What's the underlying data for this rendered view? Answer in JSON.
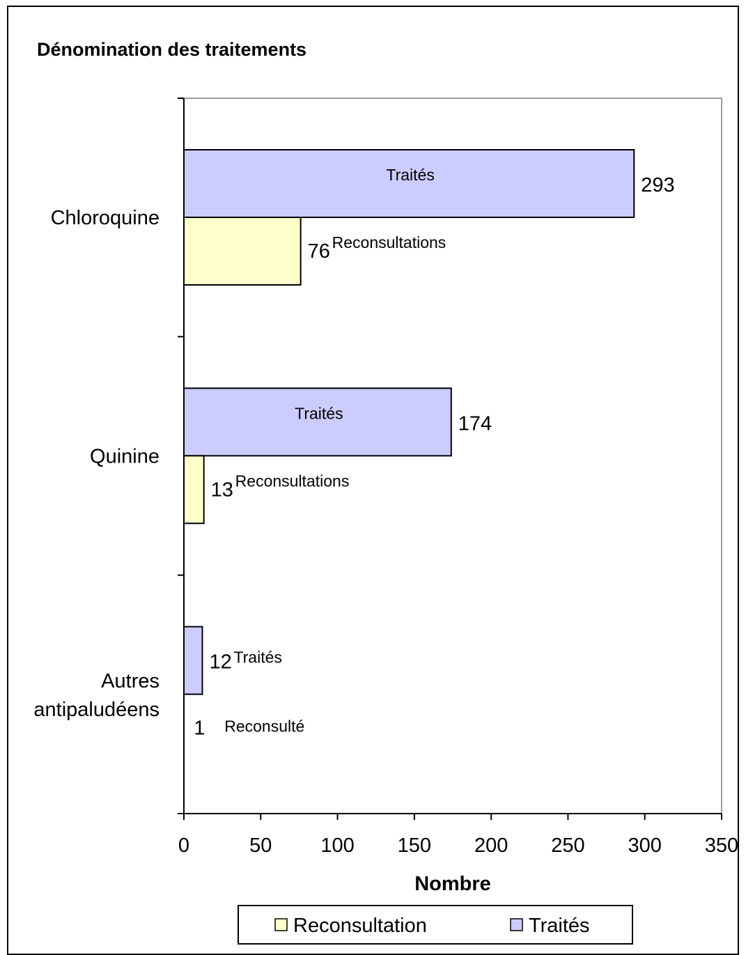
{
  "colors": {
    "traites": "#ccccff",
    "reconsultation": "#ffffcc",
    "stroke": "#000000"
  },
  "chart_data": {
    "type": "bar",
    "orientation": "horizontal",
    "title": "Dénomination des traitements",
    "xlabel": "Nombre",
    "ylabel": "",
    "xlim": [
      0,
      350
    ],
    "x_ticks": [
      "0",
      "50",
      "100",
      "150",
      "200",
      "250",
      "300",
      "350"
    ],
    "categories": [
      "Chloroquine",
      "Quinine",
      "Autres antipaludéens"
    ],
    "category_lines": [
      [
        "Chloroquine"
      ],
      [
        "Quinine"
      ],
      [
        "Autres",
        "antipaludéens"
      ]
    ],
    "series": [
      {
        "name": "Traités",
        "values": [
          293,
          174,
          12
        ],
        "inner_labels": [
          "Traités",
          "Traités",
          "Traités"
        ]
      },
      {
        "name": "Reconsultation",
        "values": [
          76,
          13,
          1
        ],
        "inner_labels": [
          "Reconsultations",
          "Reconsultations",
          "Reconsulté"
        ]
      }
    ],
    "legend": {
      "position": "bottom",
      "items": [
        "Reconsultation",
        "Traités"
      ]
    },
    "grid": false
  }
}
